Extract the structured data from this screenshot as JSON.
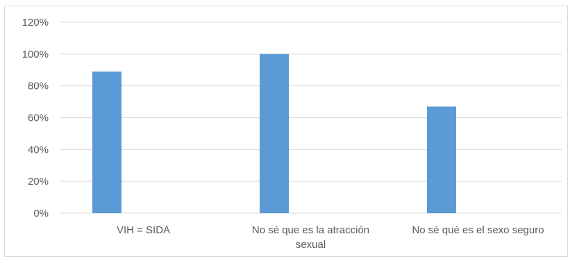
{
  "chart_data": {
    "type": "bar",
    "categories": [
      [
        "VIH = SIDA"
      ],
      [
        "No sé que es la atracción",
        "sexual"
      ],
      [
        "No sé qué es el sexo seguro"
      ]
    ],
    "values": [
      89,
      100,
      67
    ],
    "ylim": [
      0,
      120
    ],
    "yticks": [
      "0%",
      "20%",
      "40%",
      "60%",
      "80%",
      "100%",
      "120%"
    ],
    "grid": true,
    "bar_color": "#5b9bd5",
    "grid_color": "#d9d9d9"
  }
}
